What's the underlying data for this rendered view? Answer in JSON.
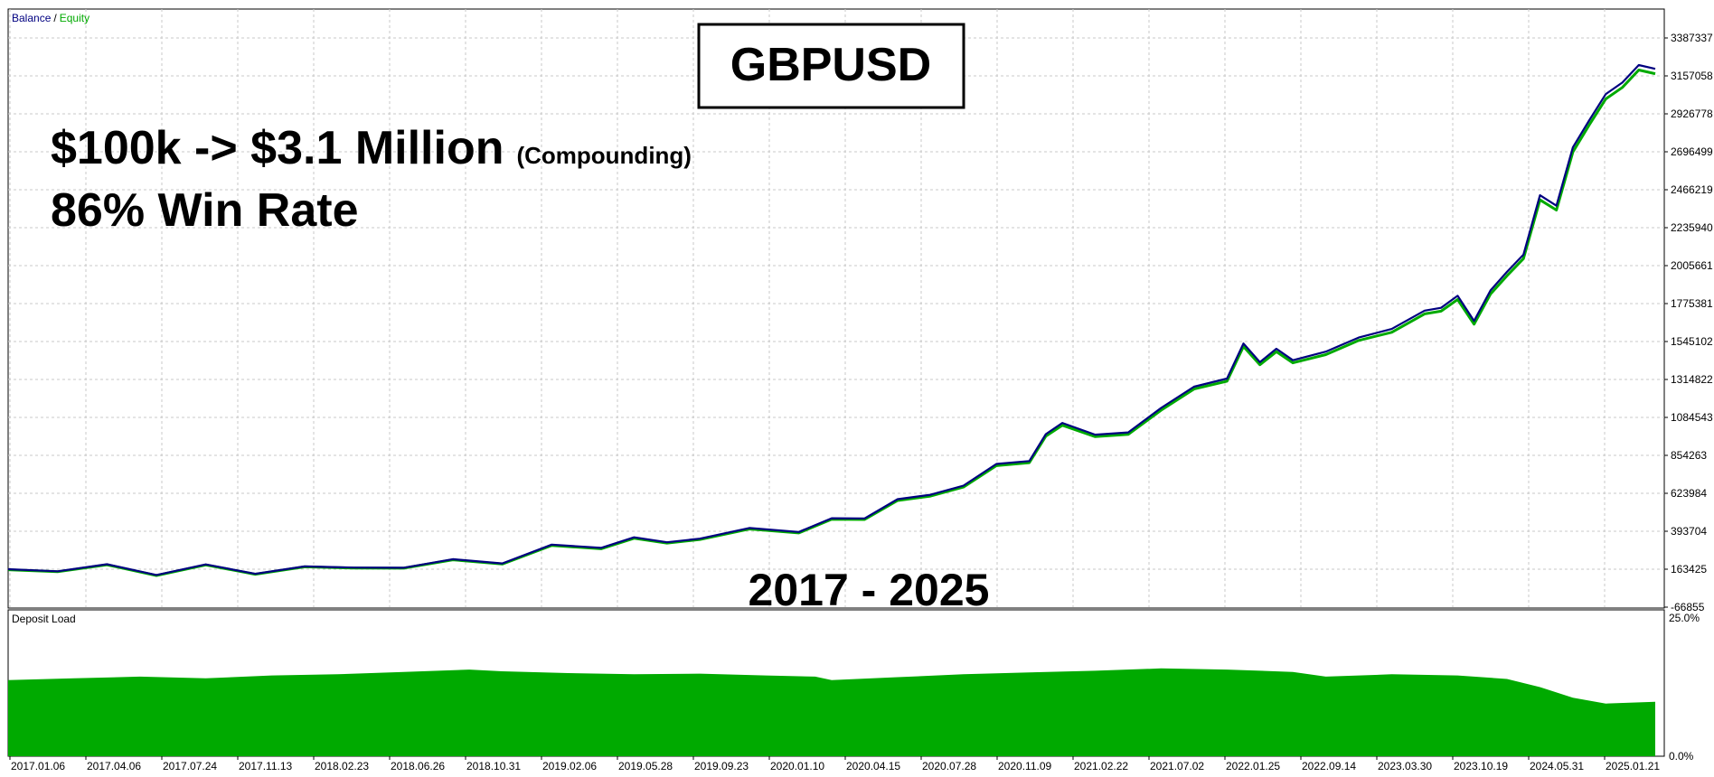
{
  "chart_data": {
    "type": "line",
    "main": {
      "legend": {
        "balance": "Balance",
        "separator": "/",
        "equity": "Equity"
      },
      "title": "GBPUSD",
      "headline": "$100k -> $3.1 Million",
      "headline_note": "(Compounding)",
      "win_rate": "86% Win Rate",
      "period": "2017 - 2025",
      "y_ticks": [
        "3387337",
        "3157058",
        "2926778",
        "2696499",
        "2466219",
        "2235940",
        "2005661",
        "1775381",
        "1545102",
        "1314822",
        "1084543",
        "854263",
        "623984",
        "393704",
        "163425",
        "-66855"
      ],
      "ylim": [
        -66855,
        3387337
      ],
      "grid": true,
      "series": [
        {
          "name": "Balance",
          "color": "#000080",
          "x": [
            0,
            0.03,
            0.06,
            0.09,
            0.12,
            0.15,
            0.18,
            0.21,
            0.24,
            0.27,
            0.3,
            0.33,
            0.36,
            0.38,
            0.4,
            0.42,
            0.45,
            0.48,
            0.5,
            0.52,
            0.54,
            0.56,
            0.58,
            0.6,
            0.62,
            0.63,
            0.64,
            0.66,
            0.68,
            0.7,
            0.72,
            0.74,
            0.75,
            0.76,
            0.77,
            0.78,
            0.8,
            0.82,
            0.84,
            0.86,
            0.87,
            0.88,
            0.89,
            0.9,
            0.91,
            0.92,
            0.93,
            0.94,
            0.95,
            0.96,
            0.97,
            0.98,
            0.99,
            1.0
          ],
          "values": [
            163425,
            165000,
            168000,
            160000,
            160000,
            162000,
            165000,
            175000,
            185000,
            200000,
            230000,
            280000,
            320000,
            340000,
            330000,
            360000,
            390000,
            420000,
            440000,
            500000,
            570000,
            620000,
            680000,
            780000,
            850000,
            950000,
            1080000,
            960000,
            1000000,
            1150000,
            1250000,
            1350000,
            1500000,
            1450000,
            1480000,
            1440000,
            1490000,
            1550000,
            1650000,
            1700000,
            1780000,
            1800000,
            1680000,
            1860000,
            1950000,
            2100000,
            2400000,
            2400000,
            2700000,
            2900000,
            3050000,
            3100000,
            3250000,
            3200000
          ]
        },
        {
          "name": "Equity",
          "color": "#00aa00",
          "x": [
            0,
            0.03,
            0.06,
            0.09,
            0.12,
            0.15,
            0.18,
            0.21,
            0.24,
            0.27,
            0.3,
            0.33,
            0.36,
            0.38,
            0.4,
            0.42,
            0.45,
            0.48,
            0.5,
            0.52,
            0.54,
            0.56,
            0.58,
            0.6,
            0.62,
            0.63,
            0.64,
            0.66,
            0.68,
            0.7,
            0.72,
            0.74,
            0.75,
            0.76,
            0.77,
            0.78,
            0.8,
            0.82,
            0.84,
            0.86,
            0.87,
            0.88,
            0.89,
            0.9,
            0.91,
            0.92,
            0.93,
            0.94,
            0.95,
            0.96,
            0.97,
            0.98,
            0.99,
            1.0
          ],
          "values": [
            160000,
            162000,
            165000,
            157000,
            157000,
            159000,
            162000,
            172000,
            182000,
            196000,
            226000,
            275000,
            315000,
            334000,
            325000,
            355000,
            384000,
            414000,
            434000,
            493000,
            562000,
            612000,
            671000,
            770000,
            840000,
            938000,
            1066000,
            948000,
            988000,
            1136000,
            1236000,
            1334000,
            1482000,
            1434000,
            1462000,
            1424000,
            1472000,
            1532000,
            1630000,
            1680000,
            1760000,
            1778000,
            1660000,
            1838000,
            1926000,
            2076000,
            2372000,
            2374000,
            2672000,
            2872000,
            3020000,
            3070000,
            3220000,
            3170000
          ]
        }
      ]
    },
    "deposit_load": {
      "label": "Deposit Load",
      "type": "area",
      "color": "#00aa00",
      "y_ticks": [
        "25.0%",
        "0.0%"
      ],
      "ylim": [
        0,
        25
      ],
      "x": [
        0,
        0.04,
        0.08,
        0.12,
        0.16,
        0.2,
        0.24,
        0.28,
        0.3,
        0.34,
        0.38,
        0.42,
        0.46,
        0.49,
        0.5,
        0.54,
        0.58,
        0.62,
        0.66,
        0.7,
        0.74,
        0.78,
        0.8,
        0.84,
        0.88,
        0.91,
        0.93,
        0.95,
        0.97,
        1.0
      ],
      "values": [
        13,
        13.3,
        13.6,
        13.3,
        13.8,
        14,
        14.4,
        14.8,
        14.5,
        14.2,
        14,
        14.1,
        13.8,
        13.6,
        13,
        13.5,
        14,
        14.3,
        14.6,
        15,
        14.8,
        14.4,
        13.6,
        14,
        13.8,
        13.2,
        11.8,
        10,
        9,
        9.3
      ]
    },
    "x_ticks": [
      "2017.01.06",
      "2017.04.06",
      "2017.07.24",
      "2017.11.13",
      "2018.02.23",
      "2018.06.26",
      "2018.10.31",
      "2019.02.06",
      "2019.05.28",
      "2019.09.23",
      "2020.01.10",
      "2020.04.15",
      "2020.07.28",
      "2020.11.09",
      "2021.02.22",
      "2021.07.02",
      "2022.01.25",
      "2022.09.14",
      "2023.03.30",
      "2023.10.19",
      "2024.05.31",
      "2025.01.21"
    ]
  }
}
